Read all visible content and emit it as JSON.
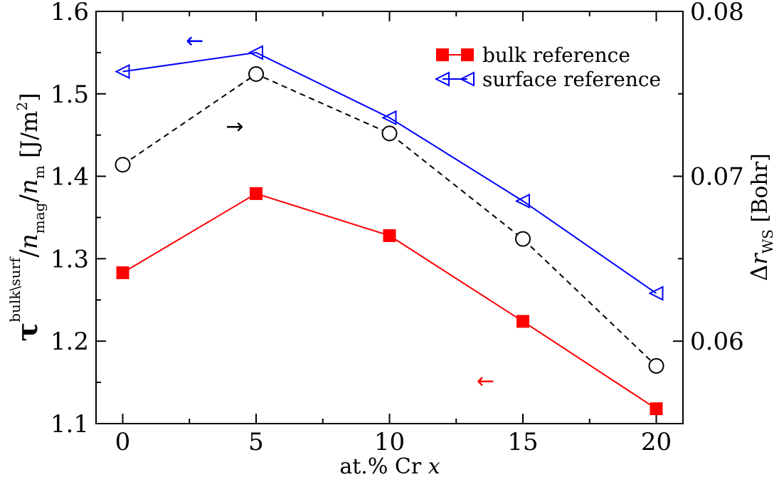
{
  "chart_data": {
    "type": "line",
    "x": [
      0,
      5,
      10,
      15,
      20
    ],
    "xlabel": "at.% Cr x",
    "xlabel_parts": {
      "pre": "at.% Cr ",
      "var": "x"
    },
    "xlim": [
      -1,
      21
    ],
    "xticks": [
      0,
      5,
      10,
      15,
      20
    ],
    "ylim": [
      1.1,
      1.6
    ],
    "yticks": [
      "1.1",
      "1.2",
      "1.3",
      "1.4",
      "1.5",
      "1.6"
    ],
    "ylabel_parts": {
      "tau": "τ",
      "sup": "bulk\\surf",
      "slash": "/",
      "n": "n",
      "sub_mag": "mag",
      "sub_m": "m",
      "unit_open": " [J/m",
      "unit_sup": "2",
      "unit_close": "]"
    },
    "y2lim": [
      0.055,
      0.08
    ],
    "y2ticks": [
      "0.06",
      "0.07",
      "0.08"
    ],
    "y2label_parts": {
      "delta": "Δ",
      "r": "r",
      "sub": "WS",
      "unit": " [Bohr]"
    },
    "series": [
      {
        "name": "bulk reference",
        "axis": "left",
        "color": "#ff0000",
        "marker": "filled-square",
        "line": "solid",
        "values": [
          1.283,
          1.379,
          1.328,
          1.224,
          1.118
        ]
      },
      {
        "name": "surface reference",
        "axis": "left",
        "color": "#0000ff",
        "marker": "open-left-triangle",
        "line": "solid",
        "values": [
          1.527,
          1.55,
          1.471,
          1.37,
          1.258
        ]
      },
      {
        "name": "Δr_WS",
        "axis": "right",
        "color": "#000000",
        "marker": "open-circle",
        "line": "dashed",
        "values": [
          0.0707,
          0.0762,
          0.0726,
          0.0662,
          0.0585
        ]
      }
    ],
    "annotations": [
      {
        "text": "←",
        "series": "surface reference",
        "x": 2.7,
        "y": 1.556
      },
      {
        "text": "→",
        "series": "Δr_WS",
        "x": 4.2,
        "y": 1.452
      },
      {
        "text": "←",
        "series": "bulk reference",
        "x": 13.6,
        "y": 1.143
      }
    ],
    "legend": {
      "position": "top-right",
      "entries": [
        "bulk reference",
        "surface reference"
      ]
    }
  }
}
